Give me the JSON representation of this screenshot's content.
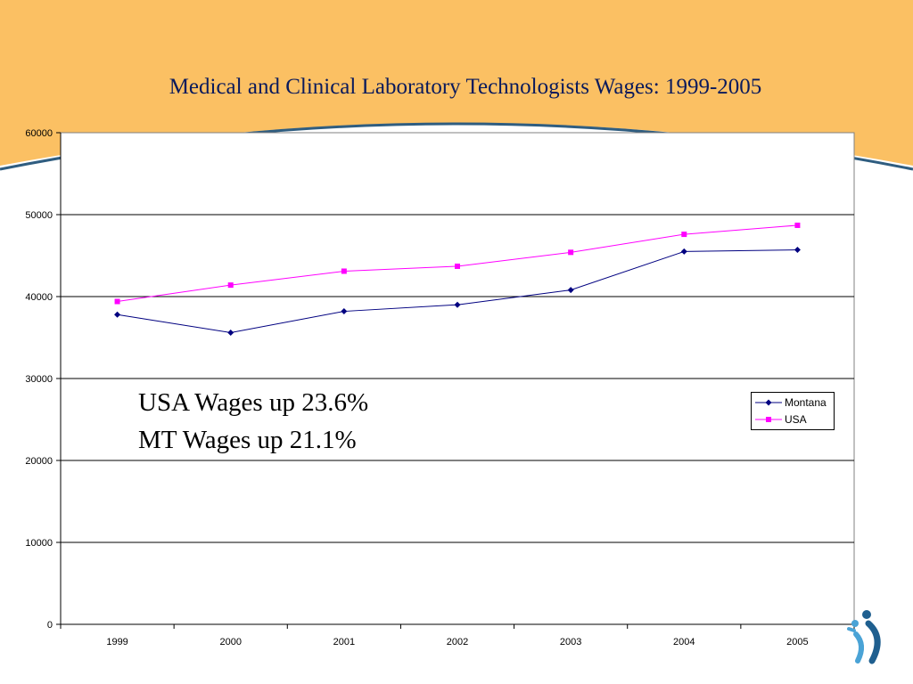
{
  "slide": {
    "title": "Medical and Clinical Laboratory Technologists Wages: 1999-2005",
    "annotations": [
      "USA Wages up 23.6%",
      "MT Wages up 21.1%"
    ],
    "colors": {
      "banner": "#fbc063",
      "arc": "#2f5d80"
    },
    "logo_icon": "people-logo-icon"
  },
  "chart_data": {
    "type": "line",
    "title": "",
    "xlabel": "",
    "ylabel": "",
    "categories": [
      "1999",
      "2000",
      "2001",
      "2002",
      "2003",
      "2004",
      "2005"
    ],
    "series": [
      {
        "name": "Montana",
        "values": [
          37800,
          35600,
          38200,
          39000,
          40800,
          45500,
          45700
        ],
        "color": "#000080",
        "marker": "diamond"
      },
      {
        "name": "USA",
        "values": [
          39400,
          41400,
          43100,
          43700,
          45400,
          47600,
          48700
        ],
        "color": "#ff00ff",
        "marker": "square"
      }
    ],
    "ylim": [
      0,
      60000
    ],
    "yticks": [
      0,
      10000,
      20000,
      30000,
      40000,
      50000,
      60000
    ],
    "grid": true,
    "legend": "right"
  }
}
